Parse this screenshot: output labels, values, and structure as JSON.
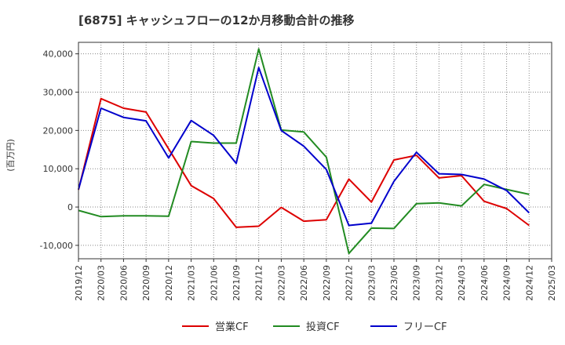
{
  "chart_data": {
    "type": "line",
    "title": "[6875]  キャッシュフローの12か月移動合計の推移",
    "ylabel": "(百万円)",
    "xlabel": "",
    "ylim": [
      -13500,
      43000
    ],
    "yticks": [
      -10000,
      0,
      10000,
      20000,
      30000,
      40000
    ],
    "ytick_labels": [
      "-10,000",
      "0",
      "10,000",
      "20,000",
      "30,000",
      "40,000"
    ],
    "categories": [
      "2019/12",
      "2020/03",
      "2020/06",
      "2020/09",
      "2020/12",
      "2021/03",
      "2021/06",
      "2021/09",
      "2021/12",
      "2022/03",
      "2022/06",
      "2022/09",
      "2022/12",
      "2023/03",
      "2023/06",
      "2023/09",
      "2023/12",
      "2024/03",
      "2024/06",
      "2024/09",
      "2024/12",
      "2025/03"
    ],
    "grid": true,
    "legend_position": "bottom",
    "series": [
      {
        "name": "営業CF",
        "color": "#dd0000",
        "values": [
          4500,
          28300,
          25800,
          24800,
          15200,
          5600,
          2200,
          -5300,
          -5000,
          -100,
          -3700,
          -3300,
          7300,
          1300,
          12300,
          13500,
          7600,
          8200,
          1500,
          -400,
          -4800,
          null
        ]
      },
      {
        "name": "投資CF",
        "color": "#228b22",
        "values": [
          -900,
          -2500,
          -2300,
          -2300,
          -2400,
          17100,
          16700,
          16700,
          41300,
          20100,
          19600,
          13000,
          -12100,
          -5500,
          -5600,
          900,
          1100,
          300,
          5900,
          4600,
          3300,
          null
        ]
      },
      {
        "name": "フリーCF",
        "color": "#0000cc",
        "values": [
          4600,
          25800,
          23400,
          22500,
          12800,
          22600,
          18700,
          11400,
          36400,
          20000,
          15900,
          9800,
          -4800,
          -4200,
          6700,
          14300,
          8700,
          8500,
          7300,
          4300,
          -1500,
          null
        ]
      }
    ]
  }
}
